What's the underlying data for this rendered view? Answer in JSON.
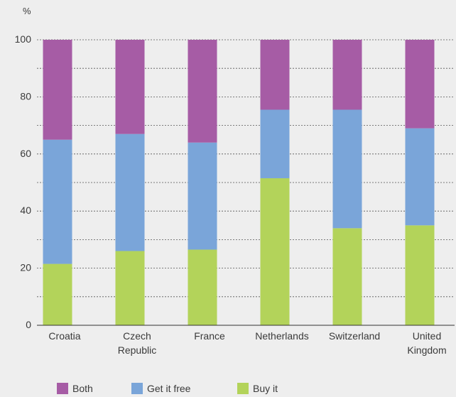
{
  "chart_data": {
    "type": "bar",
    "stacked": true,
    "title": "",
    "ylabel": "%",
    "xlabel": "",
    "ylim": [
      0,
      100
    ],
    "yticks": [
      0,
      20,
      40,
      60,
      80,
      100
    ],
    "grid": "horizontal dashed every 10",
    "legend_position": "bottom",
    "categories": [
      [
        "Croatia"
      ],
      [
        "Czech",
        "Republic"
      ],
      [
        "France"
      ],
      [
        "Netherlands"
      ],
      [
        "Switzerland"
      ],
      [
        "United",
        "Kingdom"
      ]
    ],
    "series": [
      {
        "name": "Buy it",
        "color": "#b3d35a",
        "values": [
          21.5,
          26,
          26.5,
          51.5,
          34,
          35
        ]
      },
      {
        "name": "Get it free",
        "color": "#7aa5d9",
        "values": [
          43.5,
          41,
          37.5,
          24,
          41.5,
          34
        ]
      },
      {
        "name": "Both",
        "color": "#a65ca5",
        "values": [
          35,
          33,
          36,
          24.5,
          24.5,
          31
        ]
      }
    ],
    "legend_order": [
      "Both",
      "Get it free",
      "Buy it"
    ]
  }
}
